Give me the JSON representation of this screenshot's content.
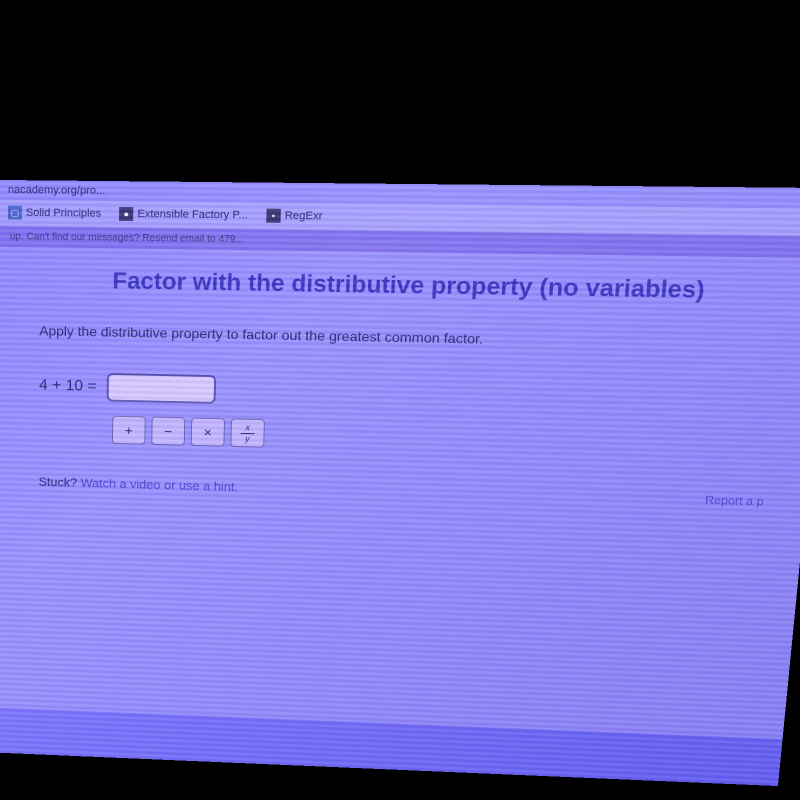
{
  "url": "nacademy.org/pro...",
  "bookmarks": [
    {
      "label": "Solid Principles",
      "icon": "▢"
    },
    {
      "label": "Extensible Factory P...",
      "icon": "●"
    },
    {
      "label": "RegExr",
      "icon": "▪"
    }
  ],
  "notification": "up. Can't find our messages? Resend email to 479...",
  "page": {
    "title": "Factor with the distributive property (no variables)",
    "instruction": "Apply the distributive property to factor out the greatest common factor.",
    "problem_expression": "4 + 10 =",
    "toolbar_buttons": [
      "+",
      "−",
      "×"
    ],
    "stuck_prefix": "Stuck? ",
    "stuck_link": "Watch a video or use a hint.",
    "report_link": "Report a p"
  }
}
